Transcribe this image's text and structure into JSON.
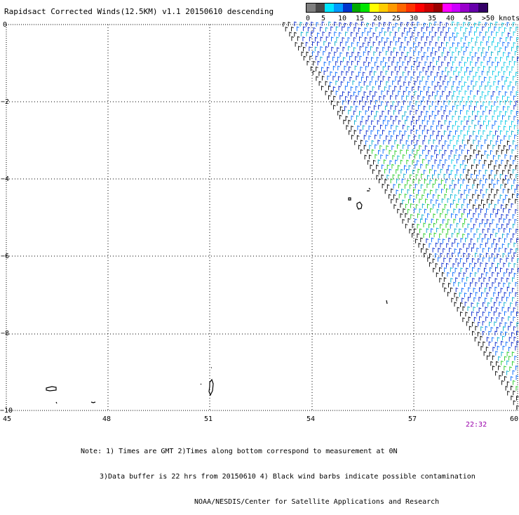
{
  "title": "Rapidsact Corrected Winds(12.5KM) v1.1 20150610 descending",
  "legend": {
    "colors": [
      "#7f7f7f",
      "#4a4a4a",
      "#00e6ff",
      "#0099ff",
      "#0033cc",
      "#00aa00",
      "#00e600",
      "#ffff00",
      "#ffcc00",
      "#ff9900",
      "#ff6600",
      "#ff3300",
      "#ff0000",
      "#cc0000",
      "#990000",
      "#ff00ff",
      "#cc00ff",
      "#9900cc",
      "#6600aa",
      "#330066"
    ],
    "labels": [
      "0",
      "5",
      "10",
      "15",
      "20",
      "25",
      "30",
      "35",
      "40",
      "45",
      ">50 knots"
    ]
  },
  "axes": {
    "x_labels": [
      "45",
      "48",
      "51",
      "54",
      "57",
      "60"
    ],
    "y_labels": [
      "0",
      "−2",
      "−4",
      "−6",
      "−8",
      "−10"
    ]
  },
  "timestamp": "22:32",
  "notes": {
    "line1": "Note: 1) Times are GMT 2)Times along bottom correspond to measurement at 0N",
    "line2": "3)Data buffer is 22 hrs from 20150610 4) Black wind barbs indicate possible contamination",
    "line3": "NOAA/NESDIS/Center for Satellite Applications and Research"
  }
}
